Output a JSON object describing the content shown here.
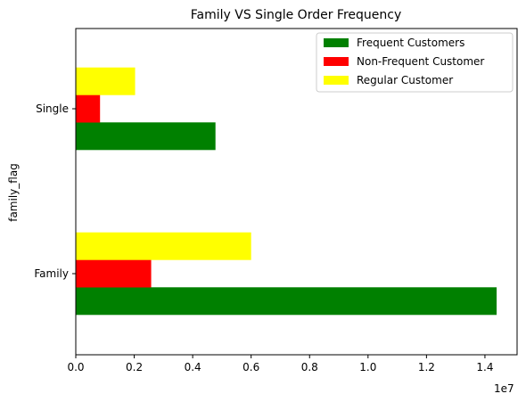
{
  "chart_data": {
    "type": "bar",
    "orientation": "horizontal",
    "title": "Family VS Single Order Frequency",
    "xlabel": "",
    "ylabel": "family_flag",
    "x_offset_label": "1e7",
    "xlim": [
      0,
      1.51
    ],
    "x_ticks": [
      0.0,
      0.2,
      0.4,
      0.6,
      0.8,
      1.0,
      1.2,
      1.4
    ],
    "x_tick_labels": [
      "0.0",
      "0.2",
      "0.4",
      "0.6",
      "0.8",
      "1.0",
      "1.2",
      "1.4"
    ],
    "categories": [
      "Family",
      "Single"
    ],
    "series": [
      {
        "name": "Frequent Customers",
        "color": "#008000",
        "values": [
          1.44,
          0.478
        ]
      },
      {
        "name": "Non-Frequent Customer",
        "color": "#ff0000",
        "values": [
          0.258,
          0.083
        ]
      },
      {
        "name": "Regular Customer",
        "color": "#ffff00",
        "values": [
          0.6,
          0.203
        ]
      }
    ],
    "legend_position": "top-right",
    "grid": false
  }
}
